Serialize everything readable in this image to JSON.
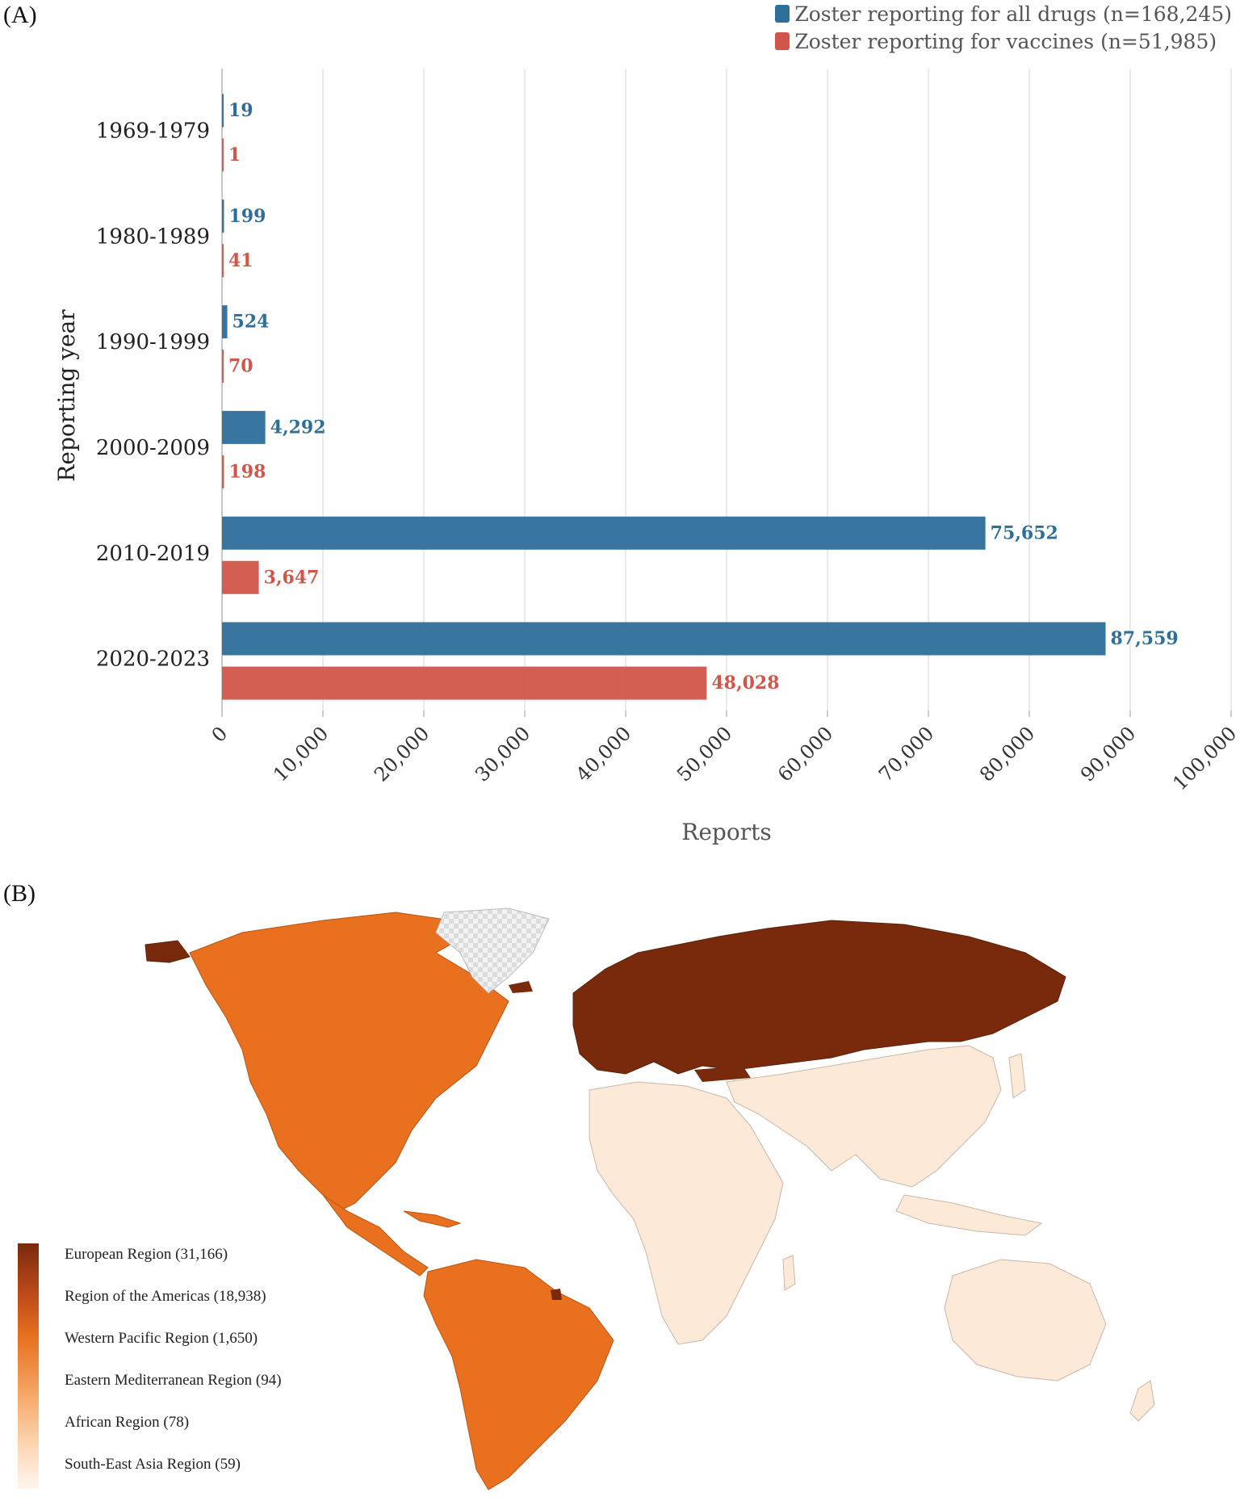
{
  "panel_a_label": "(A)",
  "panel_b_label": "(B)",
  "legend": {
    "items": [
      {
        "label": "Zoster reporting for all drugs (n=168,245)",
        "color": "#2e6f9a"
      },
      {
        "label": "Zoster reporting for vaccines (n=51,985)",
        "color": "#d1564a"
      }
    ]
  },
  "chart_data": [
    {
      "type": "bar",
      "orientation": "horizontal",
      "categories": [
        "1969-1979",
        "1980-1989",
        "1990-1999",
        "2000-2009",
        "2010-2019",
        "2020-2023"
      ],
      "series": [
        {
          "name": "Zoster reporting for all drugs (n=168,245)",
          "color": "#2e6f9a",
          "values": [
            19,
            199,
            524,
            4292,
            75652,
            87559
          ],
          "labels": [
            "19",
            "199",
            "524",
            "4,292",
            "75,652",
            "87,559"
          ]
        },
        {
          "name": "Zoster reporting for vaccines (n=51,985)",
          "color": "#d1564a",
          "values": [
            1,
            41,
            70,
            198,
            3647,
            48028
          ],
          "labels": [
            "1",
            "41",
            "70",
            "198",
            "3,647",
            "48,028"
          ]
        }
      ],
      "xlabel": "Reports",
      "ylabel": "Reporting year",
      "xlim": [
        0,
        100000
      ],
      "xticks": [
        0,
        10000,
        20000,
        30000,
        40000,
        50000,
        60000,
        70000,
        80000,
        90000,
        100000
      ],
      "xtick_labels": [
        "0",
        "10,000",
        "20,000",
        "30,000",
        "40,000",
        "50,000",
        "60,000",
        "70,000",
        "80,000",
        "90,000",
        "100,000"
      ],
      "grid": true,
      "legend_position": "top-right"
    },
    {
      "type": "choropleth-map",
      "regions": [
        {
          "name": "European Region",
          "value": 31166,
          "label": "European Region (31,166)",
          "color": "#7a2a0c"
        },
        {
          "name": "Region of the Americas",
          "value": 18938,
          "label": "Region of the Americas (18,938)",
          "color": "#e8701f"
        },
        {
          "name": "Western Pacific Region",
          "value": 1650,
          "label": "Western Pacific Region (1,650)",
          "color": "#fde9d8"
        },
        {
          "name": "Eastern Mediterranean Region",
          "value": 94,
          "label": "Eastern Mediterranean Region (94)",
          "color": "#fde9d8"
        },
        {
          "name": "African Region",
          "value": 78,
          "label": "African Region (78)",
          "color": "#fde9d8"
        },
        {
          "name": "South-East Asia Region",
          "value": 59,
          "label": "South-East Asia Region (59)",
          "color": "#fde9d8"
        }
      ],
      "no_data_color": "#e4e4e4"
    }
  ]
}
